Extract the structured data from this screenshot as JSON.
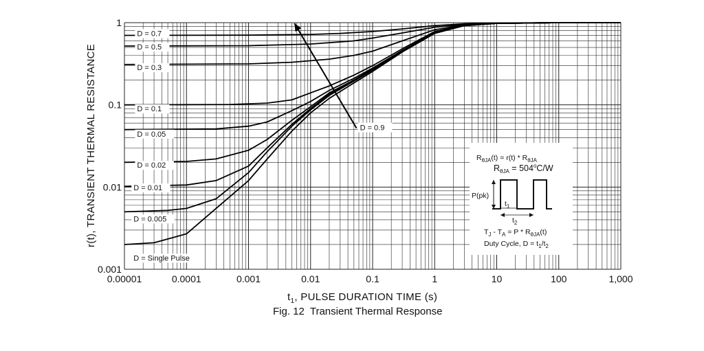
{
  "chart_data": {
    "type": "line",
    "xscale": "log",
    "yscale": "log",
    "xlim": [
      1e-05,
      1000
    ],
    "ylim": [
      0.001,
      1
    ],
    "grid": true,
    "xlabel_main": "t",
    "xlabel_sub": "1",
    "xlabel_rest": ", PULSE DURATION TIME (s)",
    "ylabel": "r(t), TRANSIENT THERMAL RESISTANCE",
    "fig_number": "Fig. 12",
    "fig_title": "Transient Thermal Response",
    "xticks": [
      {
        "value": 1e-05,
        "label": "0.00001"
      },
      {
        "value": 0.0001,
        "label": "0.0001"
      },
      {
        "value": 0.001,
        "label": "0.001"
      },
      {
        "value": 0.01,
        "label": "0.01"
      },
      {
        "value": 0.1,
        "label": "0.1"
      },
      {
        "value": 1,
        "label": "1"
      },
      {
        "value": 10,
        "label": "10"
      },
      {
        "value": 100,
        "label": "100"
      },
      {
        "value": 1000,
        "label": "1,000"
      }
    ],
    "yticks": [
      {
        "value": 1,
        "label": "1"
      },
      {
        "value": 0.1,
        "label": "0.1"
      },
      {
        "value": 0.01,
        "label": "0.01"
      },
      {
        "value": 0.001,
        "label": "0.001"
      }
    ],
    "series": [
      {
        "name": "D = 0.7",
        "points": [
          [
            1e-05,
            0.7
          ],
          [
            0.001,
            0.705
          ],
          [
            0.01,
            0.72
          ],
          [
            0.03,
            0.74
          ],
          [
            0.1,
            0.78
          ],
          [
            0.3,
            0.84
          ],
          [
            1,
            0.92
          ],
          [
            3,
            0.97
          ],
          [
            10,
            0.99
          ],
          [
            100,
            1.0
          ],
          [
            1000,
            1.0
          ]
        ]
      },
      {
        "name": "D = 0.5",
        "points": [
          [
            1e-05,
            0.52
          ],
          [
            0.001,
            0.525
          ],
          [
            0.01,
            0.55
          ],
          [
            0.05,
            0.6
          ],
          [
            0.1,
            0.65
          ],
          [
            0.3,
            0.75
          ],
          [
            1,
            0.88
          ],
          [
            3,
            0.95
          ],
          [
            10,
            0.98
          ],
          [
            100,
            1.0
          ],
          [
            1000,
            1.0
          ]
        ]
      },
      {
        "name": "D = 0.3",
        "points": [
          [
            1e-05,
            0.31
          ],
          [
            0.001,
            0.315
          ],
          [
            0.005,
            0.33
          ],
          [
            0.02,
            0.36
          ],
          [
            0.05,
            0.4
          ],
          [
            0.1,
            0.45
          ],
          [
            0.3,
            0.6
          ],
          [
            1,
            0.82
          ],
          [
            3,
            0.94
          ],
          [
            10,
            0.98
          ],
          [
            100,
            1.0
          ],
          [
            1000,
            1.0
          ]
        ]
      },
      {
        "name": "D = 0.1",
        "points": [
          [
            1e-05,
            0.1
          ],
          [
            0.0005,
            0.101
          ],
          [
            0.002,
            0.105
          ],
          [
            0.005,
            0.115
          ],
          [
            0.01,
            0.14
          ],
          [
            0.02,
            0.17
          ],
          [
            0.05,
            0.23
          ],
          [
            0.1,
            0.3
          ],
          [
            0.3,
            0.48
          ],
          [
            1,
            0.78
          ],
          [
            3,
            0.93
          ],
          [
            10,
            0.98
          ],
          [
            100,
            1.0
          ],
          [
            1000,
            1.0
          ]
        ]
      },
      {
        "name": "D = 0.05",
        "points": [
          [
            1e-05,
            0.05
          ],
          [
            0.0003,
            0.051
          ],
          [
            0.001,
            0.055
          ],
          [
            0.002,
            0.062
          ],
          [
            0.005,
            0.085
          ],
          [
            0.01,
            0.11
          ],
          [
            0.02,
            0.15
          ],
          [
            0.05,
            0.21
          ],
          [
            0.1,
            0.28
          ],
          [
            0.3,
            0.46
          ],
          [
            1,
            0.76
          ],
          [
            3,
            0.92
          ],
          [
            10,
            0.98
          ],
          [
            100,
            1.0
          ],
          [
            1000,
            1.0
          ]
        ]
      },
      {
        "name": "D = 0.02",
        "points": [
          [
            1e-05,
            0.02
          ],
          [
            0.0001,
            0.0205
          ],
          [
            0.0003,
            0.022
          ],
          [
            0.001,
            0.028
          ],
          [
            0.002,
            0.038
          ],
          [
            0.005,
            0.065
          ],
          [
            0.01,
            0.095
          ],
          [
            0.02,
            0.14
          ],
          [
            0.05,
            0.2
          ],
          [
            0.1,
            0.27
          ],
          [
            0.3,
            0.45
          ],
          [
            1,
            0.75
          ],
          [
            3,
            0.92
          ],
          [
            10,
            0.98
          ],
          [
            100,
            1.0
          ],
          [
            1000,
            1.0
          ]
        ]
      },
      {
        "name": "D = 0.01",
        "points": [
          [
            1e-05,
            0.0102
          ],
          [
            0.0001,
            0.0106
          ],
          [
            0.0003,
            0.012
          ],
          [
            0.001,
            0.018
          ],
          [
            0.002,
            0.03
          ],
          [
            0.005,
            0.058
          ],
          [
            0.01,
            0.09
          ],
          [
            0.02,
            0.135
          ],
          [
            0.05,
            0.2
          ],
          [
            0.1,
            0.27
          ],
          [
            0.3,
            0.45
          ],
          [
            1,
            0.75
          ],
          [
            3,
            0.92
          ],
          [
            10,
            0.98
          ],
          [
            100,
            1.0
          ],
          [
            1000,
            1.0
          ]
        ]
      },
      {
        "name": "D = 0.005",
        "points": [
          [
            1e-05,
            0.005
          ],
          [
            5e-05,
            0.0052
          ],
          [
            0.0001,
            0.0055
          ],
          [
            0.0003,
            0.0072
          ],
          [
            0.001,
            0.015
          ],
          [
            0.002,
            0.027
          ],
          [
            0.005,
            0.055
          ],
          [
            0.01,
            0.087
          ],
          [
            0.02,
            0.13
          ],
          [
            0.05,
            0.195
          ],
          [
            0.1,
            0.265
          ],
          [
            0.3,
            0.45
          ],
          [
            1,
            0.75
          ],
          [
            3,
            0.92
          ],
          [
            10,
            0.98
          ],
          [
            100,
            1.0
          ],
          [
            1000,
            1.0
          ]
        ]
      },
      {
        "name": "D = Single Pulse",
        "points": [
          [
            1e-05,
            0.002
          ],
          [
            3e-05,
            0.0021
          ],
          [
            0.0001,
            0.0027
          ],
          [
            0.0003,
            0.0055
          ],
          [
            0.001,
            0.012
          ],
          [
            0.002,
            0.022
          ],
          [
            0.005,
            0.048
          ],
          [
            0.01,
            0.08
          ],
          [
            0.02,
            0.12
          ],
          [
            0.05,
            0.185
          ],
          [
            0.1,
            0.255
          ],
          [
            0.3,
            0.44
          ],
          [
            1,
            0.74
          ],
          [
            3,
            0.92
          ],
          [
            10,
            0.98
          ],
          [
            100,
            1.0
          ],
          [
            1000,
            1.0
          ]
        ]
      }
    ],
    "curve_labels": [
      {
        "text": "D = 0.7",
        "x": 1.6e-05,
        "y": 0.7
      },
      {
        "text": "D = 0.5",
        "x": 1.6e-05,
        "y": 0.48
      },
      {
        "text": "D = 0.3",
        "x": 1.6e-05,
        "y": 0.27
      },
      {
        "text": "D = 0.1",
        "x": 1.6e-05,
        "y": 0.085
      },
      {
        "text": "D = 0.05",
        "x": 1.6e-05,
        "y": 0.042
      },
      {
        "text": "D = 0.02",
        "x": 1.6e-05,
        "y": 0.0175
      },
      {
        "text": "D = 0.01",
        "x": 1.4e-05,
        "y": 0.0093
      },
      {
        "text": "D = 0.005",
        "x": 1.4e-05,
        "y": 0.0039
      },
      {
        "text": "D = Single Pulse",
        "x": 1.4e-05,
        "y": 0.0013
      }
    ],
    "annotation_arrow": {
      "label": "D = 0.9",
      "from": [
        0.055,
        0.052
      ],
      "to": [
        0.0055,
        0.98
      ]
    },
    "inset": {
      "line1_pre": "R",
      "line1_sub": "θJA",
      "line1_mid": "(t) = r(t) * R",
      "line1_sub2": "θJA",
      "line2_pre": "R",
      "line2_sub": "θJA",
      "line2_eq": " = ",
      "line2_val": "504",
      "line2_unit_sup": "o",
      "line2_unit": "C/W",
      "ppk_label": "P(pk)",
      "t1_label": "t",
      "t1_sub": "1",
      "t2_label": "t",
      "t2_sub": "2",
      "eq_pre": "T",
      "eq_sub1": "J",
      "eq_mid": " - T",
      "eq_sub2": "A",
      "eq_rest": " = P * R",
      "eq_sub3": "θJA",
      "eq_end": "(t)",
      "duty_pre": "Duty Cycle, D = t",
      "duty_sub1": "1",
      "duty_slash": "/t",
      "duty_sub2": "2"
    }
  }
}
